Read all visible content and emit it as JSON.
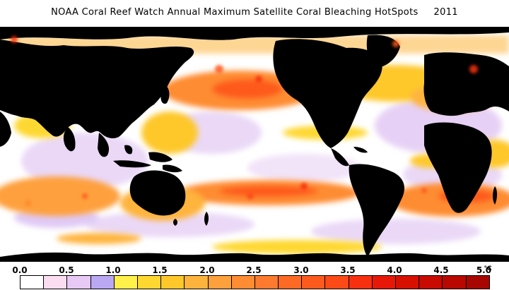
{
  "title": "NOAA Coral Reef Watch Annual Maximum Satellite Coral Bleaching HotSpots",
  "year": "2011",
  "legend": {
    "ticks": [
      "0.0",
      "0.5",
      "1.0",
      "1.5",
      "2.0",
      "2.5",
      "3.0",
      "3.5",
      "4.0",
      "4.5",
      "5.0"
    ],
    "unit": "°C",
    "colors": [
      "#ffffff",
      "#fbdcf0",
      "#e8c8f4",
      "#bba8f2",
      "#fff04a",
      "#fed830",
      "#fec82a",
      "#feb43c",
      "#fea03c",
      "#fe8c32",
      "#fe7a2e",
      "#fe6a24",
      "#fe5a1e",
      "#fe4a16",
      "#f83010",
      "#e81808",
      "#d81000",
      "#c80a00",
      "#b80800",
      "#a80600"
    ]
  },
  "map": {
    "land_color": "#000000",
    "ocean_low_color": "#ffffff",
    "mid_colors": [
      "#e8c8f4",
      "#bba8f2"
    ],
    "hot_colors": [
      "#fed830",
      "#feb43c",
      "#fe8c32",
      "#fe5a1e",
      "#f83010"
    ]
  }
}
